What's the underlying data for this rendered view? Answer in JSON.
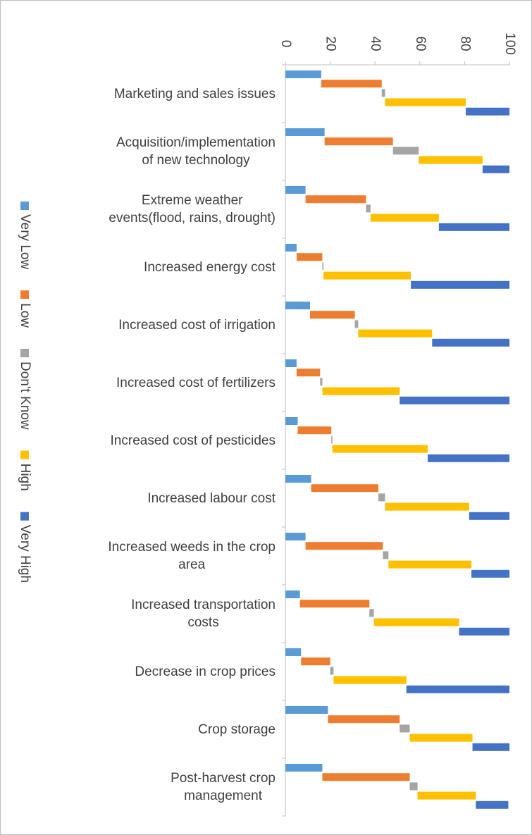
{
  "chart_data": {
    "type": "stepped_bar",
    "categories": [
      "Marketing and sales issues",
      "Acquisition/implementation\nof new technology",
      "Extreme weather\nevents(flood, rains, drought)",
      "Increased energy cost",
      "Increased cost of irrigation",
      "Increased cost of fertilizers",
      "Increased cost of pesticides",
      "Increased labour cost",
      "Increased weeds in the crop\narea",
      "Increased transportation\ncosts",
      "Decrease in crop prices",
      "Crop storage",
      "Post-harvest crop\nmanagement"
    ],
    "series": [
      {
        "name": "Very Low",
        "color": "#5b9bd5",
        "values": [
          16,
          17.5,
          9,
          5,
          11,
          5,
          5.5,
          11.5,
          9,
          6.5,
          7,
          19,
          16.5
        ]
      },
      {
        "name": "Low",
        "color": "#ed7d31",
        "values": [
          27,
          30.5,
          27,
          11.5,
          20,
          10.5,
          15,
          30,
          34.5,
          31,
          13,
          32,
          39
        ]
      },
      {
        "name": "Don't Know",
        "color": "#a5a5a5",
        "values": [
          1.5,
          11.5,
          2,
          0.5,
          1.5,
          1,
          0.5,
          3,
          2.5,
          2,
          1.5,
          4.5,
          3.5
        ]
      },
      {
        "name": "High",
        "color": "#ffc000",
        "values": [
          36,
          28.5,
          30.5,
          39,
          33,
          34.5,
          42.5,
          37.5,
          37,
          38,
          32.5,
          28,
          26
        ]
      },
      {
        "name": "Very High",
        "color": "#4472c4",
        "values": [
          19.5,
          12,
          31.5,
          44,
          34.5,
          49,
          36.5,
          18,
          17,
          22.5,
          46,
          16.5,
          14.5
        ]
      }
    ],
    "xlim": [
      0,
      100
    ],
    "xticks": [
      0,
      20,
      40,
      60,
      80,
      100
    ],
    "grid": false,
    "legend": "left"
  }
}
